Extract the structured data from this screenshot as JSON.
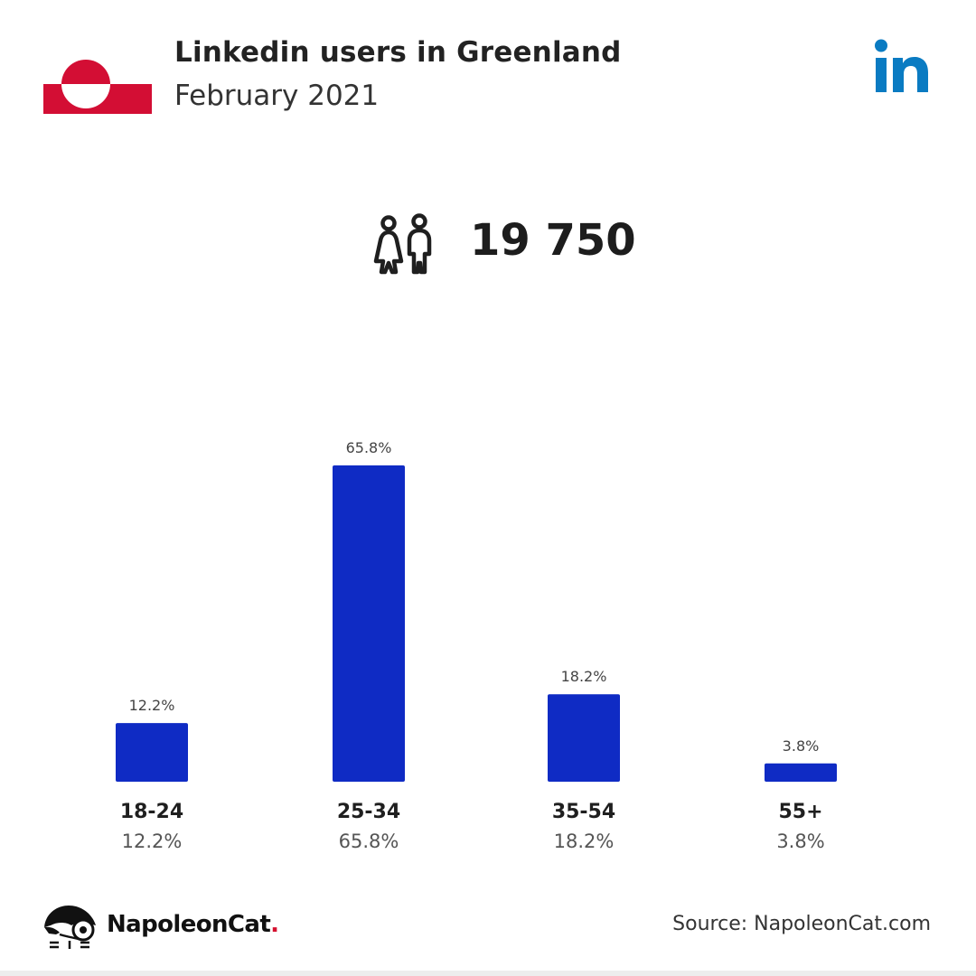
{
  "header": {
    "title": "Linkedin users in Greenland",
    "subtitle": "February 2021"
  },
  "icons": {
    "flag": "greenland-flag-icon",
    "platform": "linkedin-logo-icon",
    "audience": "people-icon",
    "brand": "napoleoncat-logo-icon"
  },
  "summary": {
    "total_users": "19 750"
  },
  "colors": {
    "bar": "#0f2bc4",
    "linkedin_blue": "#0a7bc2",
    "flag_red": "#d30e34",
    "brand_dot": "#d5112f"
  },
  "chart_data": {
    "type": "bar",
    "categories": [
      "18-24",
      "25-34",
      "35-54",
      "55+"
    ],
    "values": [
      12.2,
      65.8,
      18.2,
      3.8
    ],
    "value_labels": [
      "12.2%",
      "65.8%",
      "18.2%",
      "3.8%"
    ],
    "ylim": [
      0,
      65.8
    ]
  },
  "footer": {
    "brand_name": "NapoleonCat",
    "brand_dot": ".",
    "source": "Source: NapoleonCat.com"
  }
}
